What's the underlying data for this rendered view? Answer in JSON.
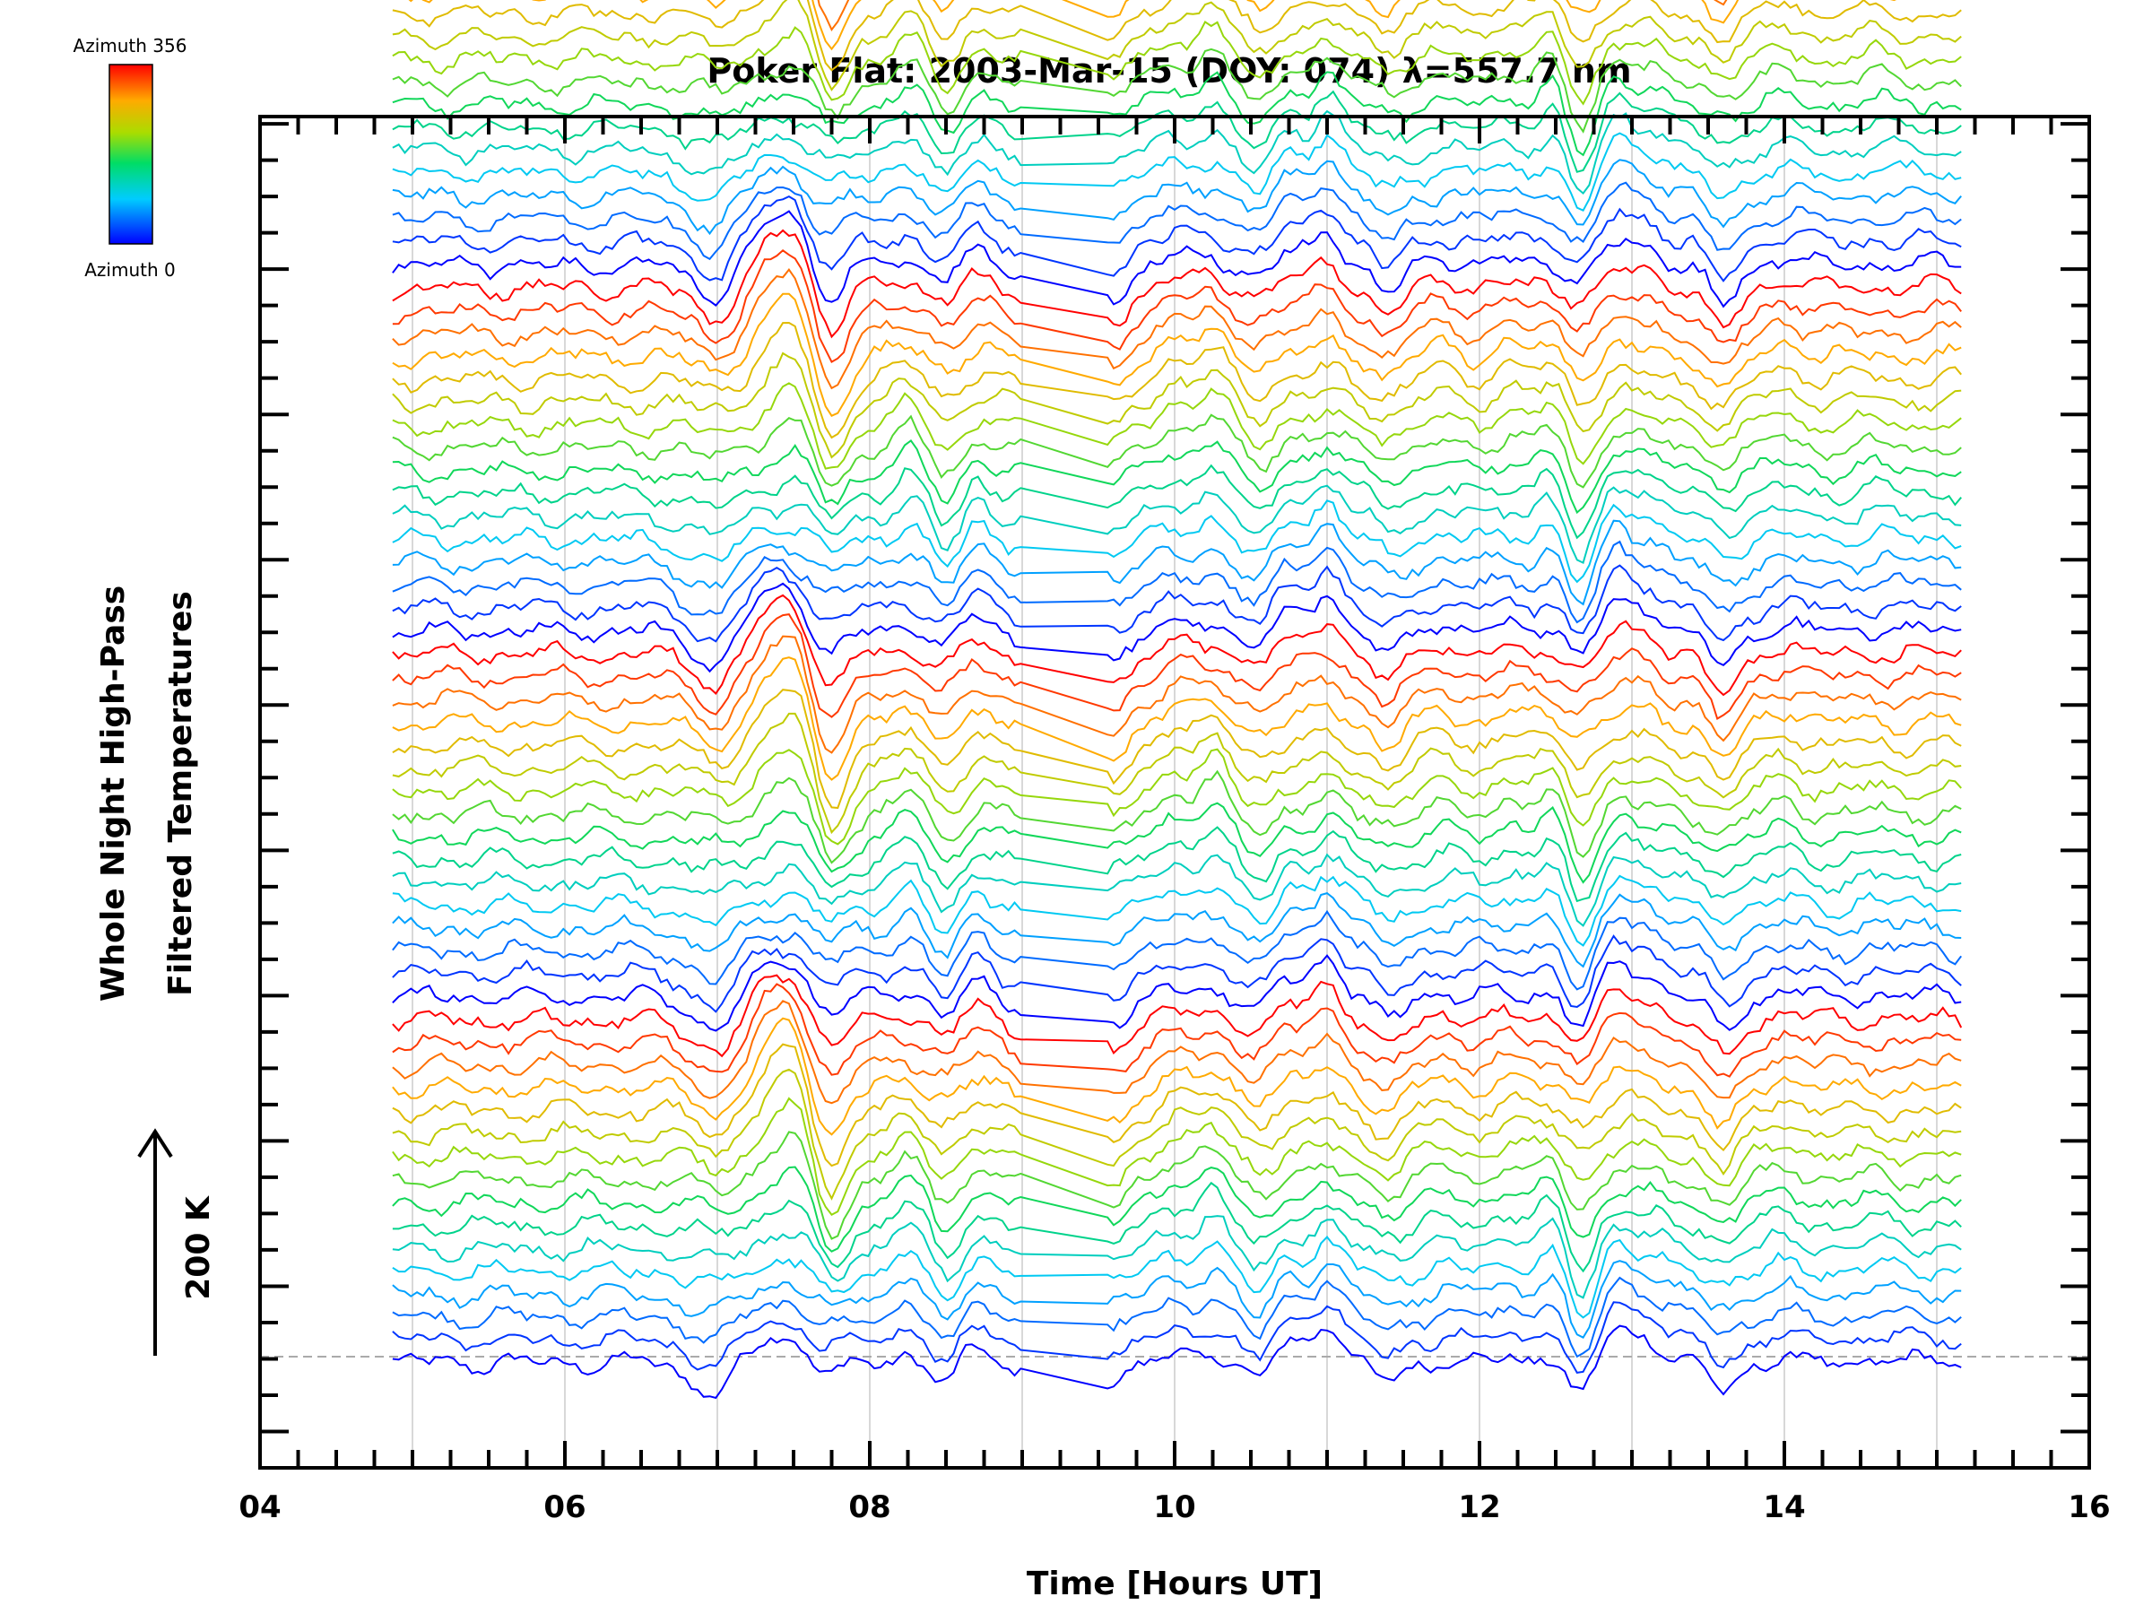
{
  "chart_data": {
    "type": "line",
    "title": "Poker Flat: 2003-Mar-15 (DOY: 074) λ=557.7 nm",
    "xlabel": "Time [Hours UT]",
    "ylabel_line1": "Whole Night High-Pass",
    "ylabel_line2": "Filtered Temperatures",
    "scale_label": "200 K",
    "xlim": [
      4,
      16
    ],
    "xticks": [
      4,
      6,
      8,
      10,
      12,
      14,
      16
    ],
    "xtick_labels": [
      "04",
      "06",
      "08",
      "10",
      "12",
      "14",
      "16"
    ],
    "grid": true,
    "colorbar": {
      "max_label": "Azimuth 356",
      "min_label": "Azimuth 0"
    },
    "time_range": [
      4.87,
      15.17
    ],
    "num_traces": 64,
    "trace_offset": "stacked by azimuth (0 to 356), offset upward",
    "features": [
      {
        "t": 6.83,
        "a": -20
      },
      {
        "t": 7.0,
        "a": -50
      },
      {
        "t": 7.33,
        "a": 60
      },
      {
        "t": 7.5,
        "a": 85
      },
      {
        "t": 7.75,
        "a": -90
      },
      {
        "t": 8.25,
        "a": 35
      },
      {
        "t": 8.5,
        "a": -55
      },
      {
        "t": 8.7,
        "a": 35
      },
      {
        "t": 9.0,
        "a": -15
      },
      {
        "t": 9.6,
        "a": -60
      },
      {
        "t": 10.0,
        "a": 40
      },
      {
        "t": 10.25,
        "a": 55
      },
      {
        "t": 10.55,
        "a": -40
      },
      {
        "t": 10.75,
        "a": 35
      },
      {
        "t": 11.0,
        "a": 70
      },
      {
        "t": 11.4,
        "a": -45
      },
      {
        "t": 11.75,
        "a": 20
      },
      {
        "t": 12.2,
        "a": 25
      },
      {
        "t": 12.5,
        "a": 45
      },
      {
        "t": 12.65,
        "a": -90
      },
      {
        "t": 12.9,
        "a": 60
      },
      {
        "t": 13.1,
        "a": 40
      },
      {
        "t": 13.6,
        "a": -70
      },
      {
        "t": 14.0,
        "a": 25
      },
      {
        "t": 14.6,
        "a": 10
      },
      {
        "t": 15.0,
        "a": 5
      }
    ]
  }
}
